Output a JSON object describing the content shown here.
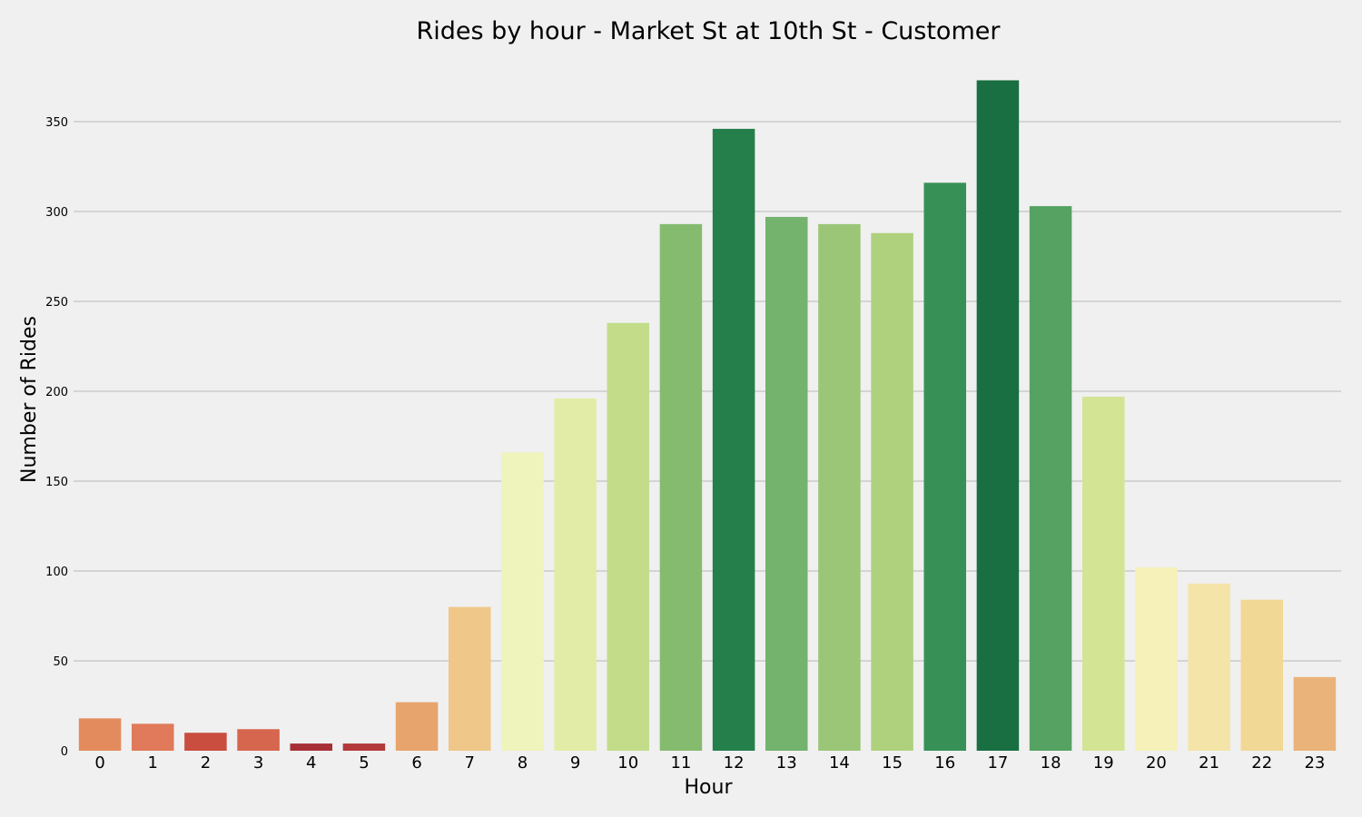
{
  "chart_data": {
    "type": "bar",
    "title": "Rides by hour - Market St at 10th St - Customer",
    "xlabel": "Hour",
    "ylabel": "Number of Rides",
    "categories": [
      "0",
      "1",
      "2",
      "3",
      "4",
      "5",
      "6",
      "7",
      "8",
      "9",
      "10",
      "11",
      "12",
      "13",
      "14",
      "15",
      "16",
      "17",
      "18",
      "19",
      "20",
      "21",
      "22",
      "23"
    ],
    "values": [
      18,
      15,
      10,
      12,
      4,
      4,
      27,
      80,
      166,
      196,
      238,
      293,
      346,
      297,
      293,
      288,
      316,
      373,
      303,
      197,
      102,
      93,
      84,
      41
    ],
    "colors": [
      "#e38b5c",
      "#e07a5a",
      "#c94e40",
      "#d7664e",
      "#a72f36",
      "#b3393a",
      "#e8a46d",
      "#efc788",
      "#eff3bc",
      "#e2eca7",
      "#c2dc8a",
      "#85bb6f",
      "#247f4b",
      "#73b36e",
      "#9bc677",
      "#afd07d",
      "#379157",
      "#196f41",
      "#55a262",
      "#d4e495",
      "#f5f1b9",
      "#f4e4a8",
      "#f1d894",
      "#eab37a"
    ],
    "yticks": [
      0,
      50,
      100,
      150,
      200,
      250,
      300,
      350
    ],
    "ylim": [
      0,
      380
    ],
    "grid": true
  }
}
